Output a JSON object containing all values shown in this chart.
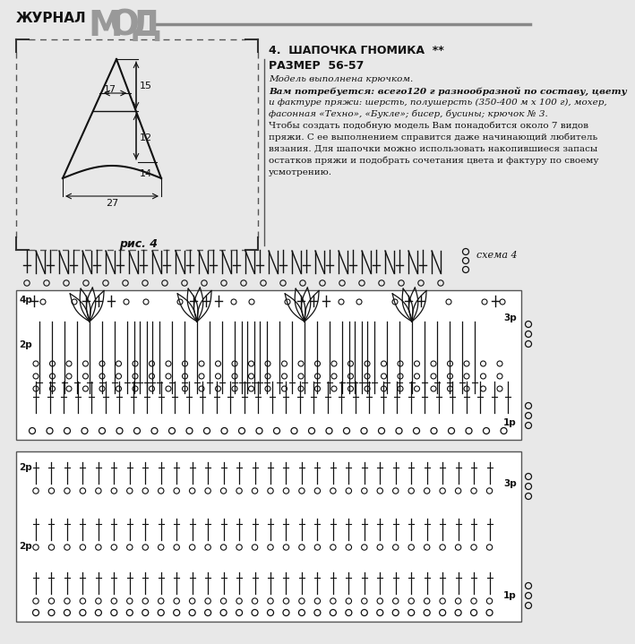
{
  "bg_color": "#e8e8e8",
  "page_bg": "#ffffff",
  "title_journal": "ЖУРНАЛ",
  "title_moda": "МОД",
  "section_title": "4.  ШАПОЧКА ГНОМИКА  **",
  "size_label": "РАЗМЕР  56-57",
  "body_text_lines": [
    "Модель выполнена крючком.",
    "Вам потребуется: всего120 г разнообразной по составу, цвету",
    "и фактуре пряжи: шерсть, полушерсть (350-400 м х 100 г), мохер,",
    "фасонная «Техно», «Букле»; бисер, бусины; крючок № 3.",
    "Чтобы создать подобную модель Вам понадобится около 7 видов",
    "пряжи. С ее выполнением справится даже начинающий любитель",
    "вязания. Для шапочки можно использовать накопившиеся запасы",
    "остатков пряжи и подобрать сочетания цвета и фактуру по своему",
    "усмотрению."
  ],
  "ris_label": "рис. 4",
  "schema_label": "схема 4",
  "line_color": "#111111"
}
